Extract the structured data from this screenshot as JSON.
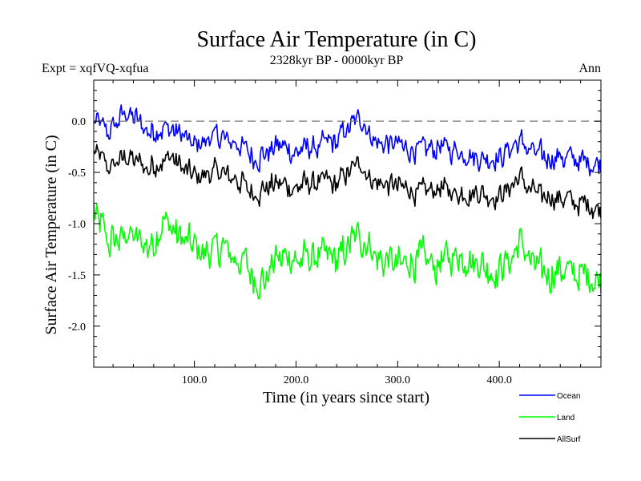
{
  "chart_data": {
    "type": "line",
    "title": "Surface Air Temperature (in C)",
    "subtitle": "2328kyr BP - 0000kyr BP",
    "experiment_label": "Expt = xqfVQ-xqfua",
    "season_label": "Ann",
    "xlabel": "Time (in years since start)",
    "ylabel": "Surface Air Temperature (in C)",
    "xlim": [
      1,
      500
    ],
    "ylim": [
      -2.4,
      0.4
    ],
    "x_ticks": [
      100,
      200,
      300,
      400
    ],
    "x_tick_labels": [
      "100.0",
      "200.0",
      "300.0",
      "400.0"
    ],
    "y_ticks": [
      0.0,
      -0.5,
      -1.0,
      -1.5,
      -2.0
    ],
    "y_tick_labels": [
      "0.0",
      "-0.5",
      "-1.0",
      "-1.5",
      "-2.0"
    ],
    "reference_line": 0.0,
    "legend_position": "bottom-right",
    "series": [
      {
        "name": "Ocean",
        "color": "#0000ff",
        "anchors": [
          [
            1,
            0.0
          ],
          [
            15,
            -0.1
          ],
          [
            35,
            0.1
          ],
          [
            55,
            -0.1
          ],
          [
            75,
            -0.05
          ],
          [
            100,
            -0.25
          ],
          [
            120,
            -0.15
          ],
          [
            140,
            -0.2
          ],
          [
            160,
            -0.35
          ],
          [
            180,
            -0.25
          ],
          [
            200,
            -0.3
          ],
          [
            220,
            -0.25
          ],
          [
            240,
            -0.2
          ],
          [
            262,
            0.05
          ],
          [
            280,
            -0.2
          ],
          [
            300,
            -0.25
          ],
          [
            320,
            -0.3
          ],
          [
            340,
            -0.25
          ],
          [
            360,
            -0.3
          ],
          [
            380,
            -0.35
          ],
          [
            400,
            -0.35
          ],
          [
            420,
            -0.2
          ],
          [
            440,
            -0.35
          ],
          [
            460,
            -0.35
          ],
          [
            480,
            -0.4
          ],
          [
            500,
            -0.4
          ]
        ],
        "noise": 0.12
      },
      {
        "name": "Land",
        "color": "#00ff00",
        "anchors": [
          [
            1,
            -0.85
          ],
          [
            15,
            -1.2
          ],
          [
            35,
            -1.1
          ],
          [
            55,
            -1.25
          ],
          [
            70,
            -0.95
          ],
          [
            90,
            -1.2
          ],
          [
            110,
            -1.3
          ],
          [
            130,
            -1.25
          ],
          [
            150,
            -1.4
          ],
          [
            165,
            -1.6
          ],
          [
            180,
            -1.35
          ],
          [
            200,
            -1.35
          ],
          [
            220,
            -1.3
          ],
          [
            240,
            -1.35
          ],
          [
            262,
            -1.1
          ],
          [
            280,
            -1.3
          ],
          [
            300,
            -1.4
          ],
          [
            320,
            -1.35
          ],
          [
            340,
            -1.4
          ],
          [
            360,
            -1.3
          ],
          [
            380,
            -1.35
          ],
          [
            400,
            -1.5
          ],
          [
            420,
            -1.2
          ],
          [
            440,
            -1.5
          ],
          [
            460,
            -1.45
          ],
          [
            480,
            -1.5
          ],
          [
            500,
            -1.55
          ]
        ],
        "noise": 0.18
      },
      {
        "name": "AllSurf",
        "color": "#000000",
        "anchors": [
          [
            1,
            -0.3
          ],
          [
            15,
            -0.45
          ],
          [
            35,
            -0.35
          ],
          [
            55,
            -0.45
          ],
          [
            75,
            -0.35
          ],
          [
            100,
            -0.55
          ],
          [
            120,
            -0.5
          ],
          [
            140,
            -0.55
          ],
          [
            160,
            -0.7
          ],
          [
            180,
            -0.6
          ],
          [
            200,
            -0.65
          ],
          [
            220,
            -0.6
          ],
          [
            240,
            -0.6
          ],
          [
            262,
            -0.4
          ],
          [
            280,
            -0.6
          ],
          [
            300,
            -0.65
          ],
          [
            320,
            -0.7
          ],
          [
            340,
            -0.65
          ],
          [
            360,
            -0.7
          ],
          [
            380,
            -0.7
          ],
          [
            400,
            -0.75
          ],
          [
            420,
            -0.55
          ],
          [
            440,
            -0.75
          ],
          [
            460,
            -0.75
          ],
          [
            480,
            -0.8
          ],
          [
            500,
            -0.85
          ]
        ],
        "noise": 0.12
      }
    ]
  }
}
